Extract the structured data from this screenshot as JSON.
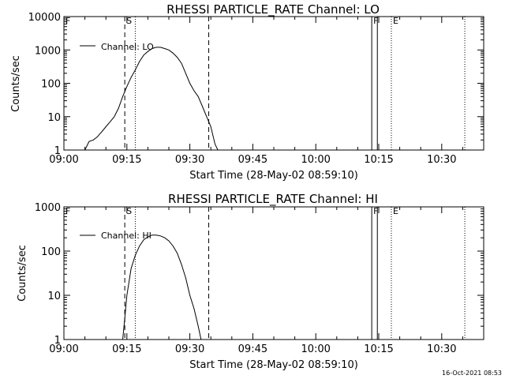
{
  "footer": {
    "date_stamp": "16-Oct-2021 08:53"
  },
  "chart_data": [
    {
      "type": "line",
      "title": "RHESSI PARTICLE_RATE Channel: LO",
      "xlabel": "Start Time (28-May-02 08:59:10)",
      "ylabel": "Counts/sec",
      "y_scale": "log",
      "xlim": [
        "09:00",
        "10:40"
      ],
      "ylim": [
        1,
        10000
      ],
      "x_ticks": [
        "09:00",
        "09:15",
        "09:30",
        "09:45",
        "10:00",
        "10:15",
        "10:30"
      ],
      "y_ticks": [
        "1",
        "10",
        "100",
        "1000",
        "10000"
      ],
      "legend": {
        "placement": "top-left",
        "entries": [
          "Channel: LO"
        ]
      },
      "series": [
        {
          "name": "Channel: LO",
          "x": [
            "09:05:00",
            "09:06:00",
            "09:07:00",
            "09:08:00",
            "09:08:30",
            "09:09:00",
            "09:10:00",
            "09:11:00",
            "09:12:00",
            "09:13:00",
            "09:14:00",
            "09:15:00",
            "09:16:00",
            "09:17:00",
            "09:18:00",
            "09:19:00",
            "09:20:00",
            "09:21:00",
            "09:22:00",
            "09:23:00",
            "09:24:00",
            "09:25:00",
            "09:26:00",
            "09:27:00",
            "09:28:00",
            "09:29:00",
            "09:30:00",
            "09:31:00",
            "09:32:00",
            "09:33:00",
            "09:34:00",
            "09:35:00",
            "09:36:00",
            "09:36:40"
          ],
          "values": [
            1,
            1.8,
            2,
            2.5,
            3,
            3.5,
            5,
            7,
            10,
            18,
            40,
            80,
            150,
            250,
            450,
            700,
            900,
            1100,
            1200,
            1200,
            1100,
            1000,
            800,
            600,
            400,
            200,
            100,
            60,
            40,
            20,
            10,
            5,
            1.5,
            1
          ]
        }
      ],
      "markers": [
        {
          "label": "F",
          "time": "09:00:00",
          "style": "solid"
        },
        {
          "label": "S",
          "time": "09:14:30",
          "style": "dashed"
        },
        {
          "label": "",
          "time": "09:17:00",
          "style": "dotted"
        },
        {
          "label": "",
          "time": "09:34:30",
          "style": "dashed"
        },
        {
          "label": "F",
          "time": "10:13:20",
          "style": "solid"
        },
        {
          "label": "",
          "time": "10:14:40",
          "style": "solid"
        },
        {
          "label": "E",
          "time": "10:18:00",
          "style": "dotted"
        },
        {
          "label": "",
          "time": "10:35:30",
          "style": "dotted"
        }
      ]
    },
    {
      "type": "line",
      "title": "RHESSI PARTICLE_RATE Channel: HI",
      "xlabel": "Start Time (28-May-02 08:59:10)",
      "ylabel": "Counts/sec",
      "y_scale": "log",
      "xlim": [
        "09:00",
        "10:40"
      ],
      "ylim": [
        1,
        1000
      ],
      "x_ticks": [
        "09:00",
        "09:15",
        "09:30",
        "09:45",
        "10:00",
        "10:15",
        "10:30"
      ],
      "y_ticks": [
        "1",
        "10",
        "100",
        "1000"
      ],
      "legend": {
        "placement": "top-left",
        "entries": [
          "Channel: HI"
        ]
      },
      "series": [
        {
          "name": "Channel: HI",
          "x": [
            "09:14:00",
            "09:14:30",
            "09:15:00",
            "09:15:30",
            "09:16:00",
            "09:17:00",
            "09:18:00",
            "09:19:00",
            "09:20:00",
            "09:21:00",
            "09:22:00",
            "09:23:00",
            "09:24:00",
            "09:25:00",
            "09:26:00",
            "09:27:00",
            "09:28:00",
            "09:29:00",
            "09:30:00",
            "09:31:00",
            "09:32:00",
            "09:32:40"
          ],
          "values": [
            1,
            3,
            10,
            20,
            40,
            80,
            130,
            180,
            210,
            230,
            230,
            220,
            200,
            170,
            130,
            90,
            50,
            25,
            10,
            5,
            2,
            1
          ]
        }
      ],
      "markers": [
        {
          "label": "F",
          "time": "09:00:00",
          "style": "solid"
        },
        {
          "label": "S",
          "time": "09:14:30",
          "style": "dashed"
        },
        {
          "label": "",
          "time": "09:17:00",
          "style": "dotted"
        },
        {
          "label": "",
          "time": "09:34:30",
          "style": "dashed"
        },
        {
          "label": "F",
          "time": "10:13:20",
          "style": "solid"
        },
        {
          "label": "",
          "time": "10:14:40",
          "style": "solid"
        },
        {
          "label": "E",
          "time": "10:18:00",
          "style": "dotted"
        },
        {
          "label": "",
          "time": "10:35:30",
          "style": "dotted"
        }
      ]
    }
  ]
}
